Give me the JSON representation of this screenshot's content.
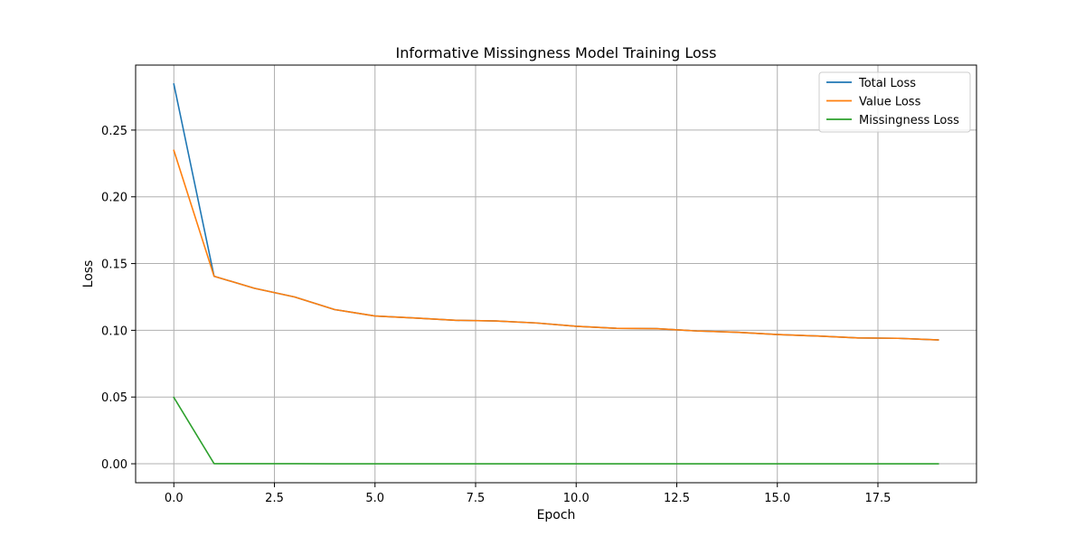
{
  "chart_data": {
    "type": "line",
    "title": "Informative Missingness Model Training Loss",
    "xlabel": "Epoch",
    "ylabel": "Loss",
    "xlim": [
      -0.95,
      19.95
    ],
    "ylim": [
      -0.0142,
      0.2987
    ],
    "xticks": [
      0.0,
      2.5,
      5.0,
      7.5,
      10.0,
      12.5,
      15.0,
      17.5
    ],
    "xtick_labels": [
      "0.0",
      "2.5",
      "5.0",
      "7.5",
      "10.0",
      "12.5",
      "15.0",
      "17.5"
    ],
    "yticks": [
      0.0,
      0.05,
      0.1,
      0.15,
      0.2,
      0.25
    ],
    "ytick_labels": [
      "0.00",
      "0.05",
      "0.10",
      "0.15",
      "0.20",
      "0.25"
    ],
    "grid": true,
    "legend_position": "top-right",
    "x": [
      0,
      1,
      2,
      3,
      4,
      5,
      6,
      7,
      8,
      9,
      10,
      11,
      12,
      13,
      14,
      15,
      16,
      17,
      18,
      19
    ],
    "series": [
      {
        "name": "Total Loss",
        "color": "#1f77b4",
        "values": [
          0.2845,
          0.1405,
          0.1315,
          0.125,
          0.1155,
          0.1107,
          0.1092,
          0.1075,
          0.107,
          0.1055,
          0.103,
          0.1015,
          0.1012,
          0.0995,
          0.0985,
          0.0968,
          0.0957,
          0.0943,
          0.094,
          0.0928
        ]
      },
      {
        "name": "Value Loss",
        "color": "#ff7f0e",
        "values": [
          0.2348,
          0.1405,
          0.1315,
          0.125,
          0.1155,
          0.1107,
          0.1092,
          0.1075,
          0.107,
          0.1055,
          0.103,
          0.1015,
          0.1012,
          0.0995,
          0.0985,
          0.0968,
          0.0957,
          0.0943,
          0.094,
          0.0928
        ]
      },
      {
        "name": "Missingness Loss",
        "color": "#2ca02c",
        "values": [
          0.0497,
          0.0001,
          0.0001,
          0.0001,
          0.0,
          0.0,
          0.0,
          0.0,
          0.0,
          0.0,
          0.0,
          0.0,
          0.0,
          0.0,
          0.0,
          0.0,
          0.0,
          0.0,
          0.0,
          0.0
        ]
      }
    ]
  }
}
